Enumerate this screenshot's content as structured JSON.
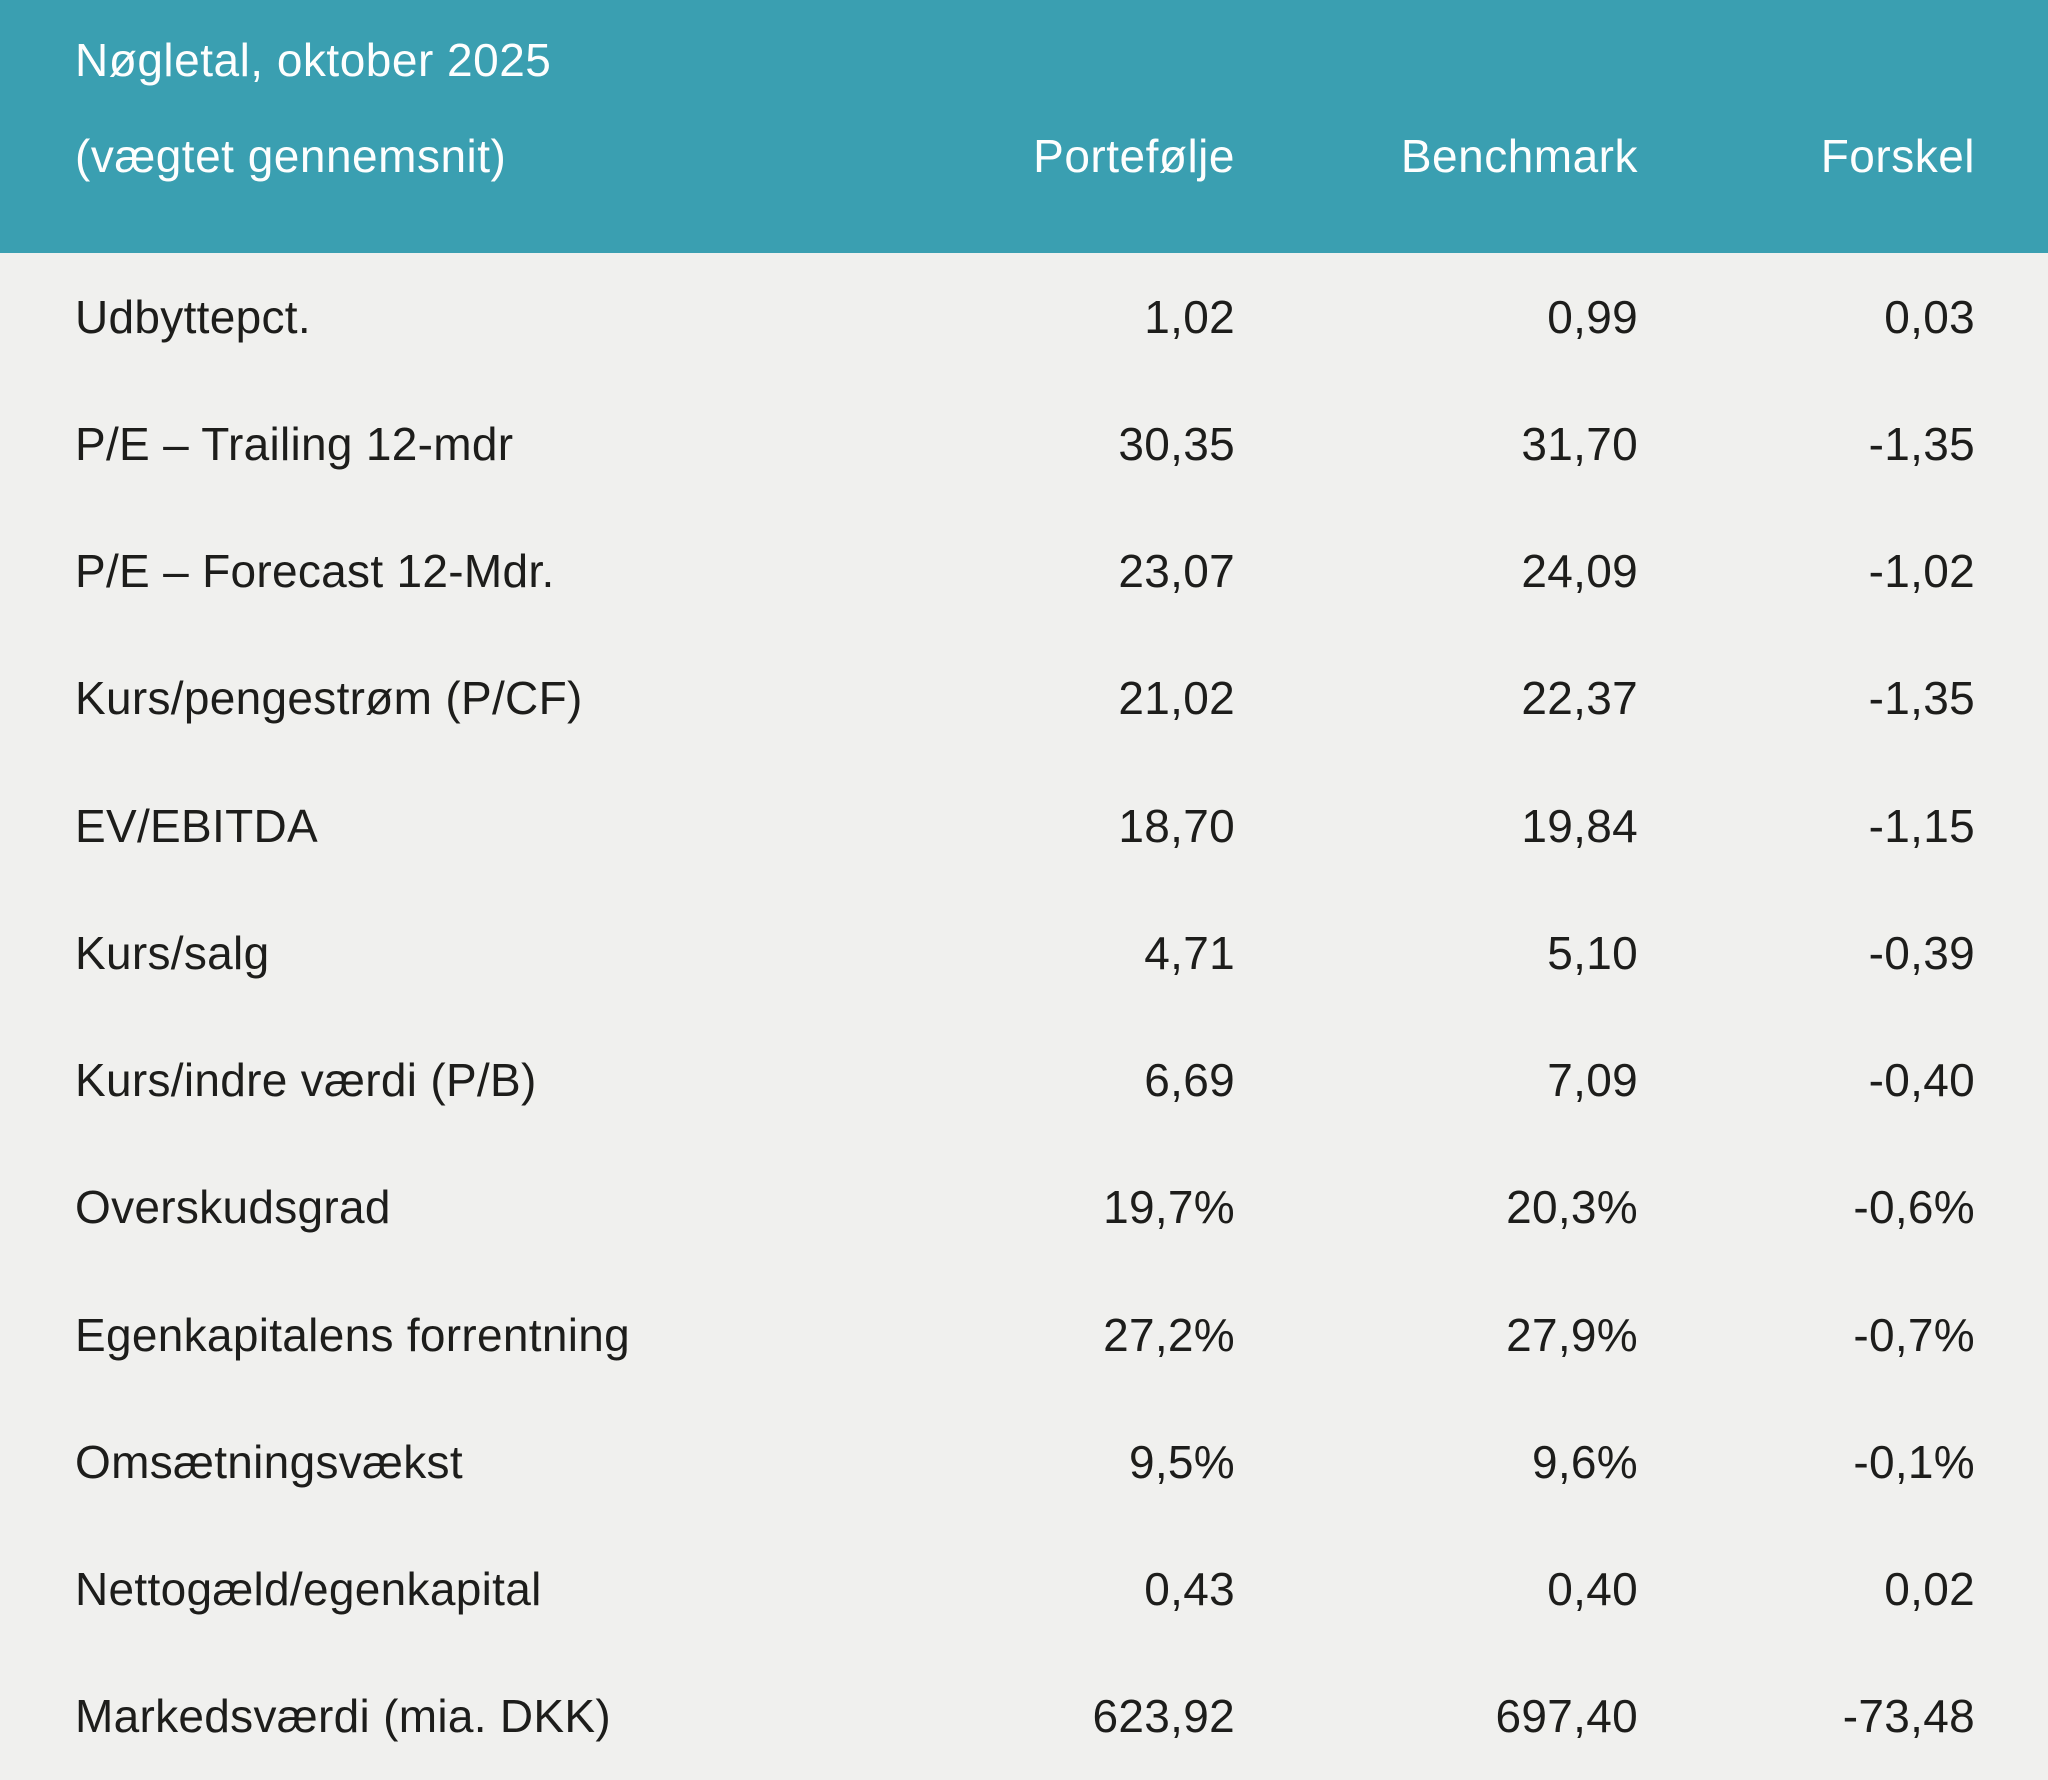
{
  "header": {
    "title": "Nøgletal, oktober 2025",
    "subtitle": "(vægtet gennemsnit)",
    "columns": {
      "portfolio": "Portefølje",
      "benchmark": "Benchmark",
      "diff": "Forskel"
    }
  },
  "table": {
    "rows": [
      {
        "label": "Udbyttepct.",
        "portfolio": "1,02",
        "benchmark": "0,99",
        "diff": "0,03"
      },
      {
        "label": "P/E – Trailing 12-mdr",
        "portfolio": "30,35",
        "benchmark": "31,70",
        "diff": "-1,35"
      },
      {
        "label": "P/E – Forecast 12-Mdr.",
        "portfolio": "23,07",
        "benchmark": "24,09",
        "diff": "-1,02"
      },
      {
        "label": "Kurs/pengestrøm (P/CF)",
        "portfolio": "21,02",
        "benchmark": "22,37",
        "diff": "-1,35"
      },
      {
        "label": "EV/EBITDA",
        "portfolio": "18,70",
        "benchmark": "19,84",
        "diff": "-1,15"
      },
      {
        "label": "Kurs/salg",
        "portfolio": "4,71",
        "benchmark": "5,10",
        "diff": "-0,39"
      },
      {
        "label": "Kurs/indre værdi (P/B)",
        "portfolio": "6,69",
        "benchmark": "7,09",
        "diff": "-0,40"
      },
      {
        "label": "Overskudsgrad",
        "portfolio": "19,7%",
        "benchmark": "20,3%",
        "diff": "-0,6%"
      },
      {
        "label": "Egenkapitalens forrentning",
        "portfolio": "27,2%",
        "benchmark": "27,9%",
        "diff": "-0,7%"
      },
      {
        "label": "Omsætningsvækst",
        "portfolio": "9,5%",
        "benchmark": "9,6%",
        "diff": "-0,1%"
      },
      {
        "label": "Nettogæld/egenkapital",
        "portfolio": "0,43",
        "benchmark": "0,40",
        "diff": "0,02"
      },
      {
        "label": "Markedsværdi (mia. DKK)",
        "portfolio": "623,92",
        "benchmark": "697,40",
        "diff": "-73,48"
      }
    ]
  },
  "colors": {
    "header_bg": "#3a9fb1",
    "body_bg": "#f0f0ee",
    "header_text": "#fdfefe",
    "body_text": "#1d1d1b"
  }
}
